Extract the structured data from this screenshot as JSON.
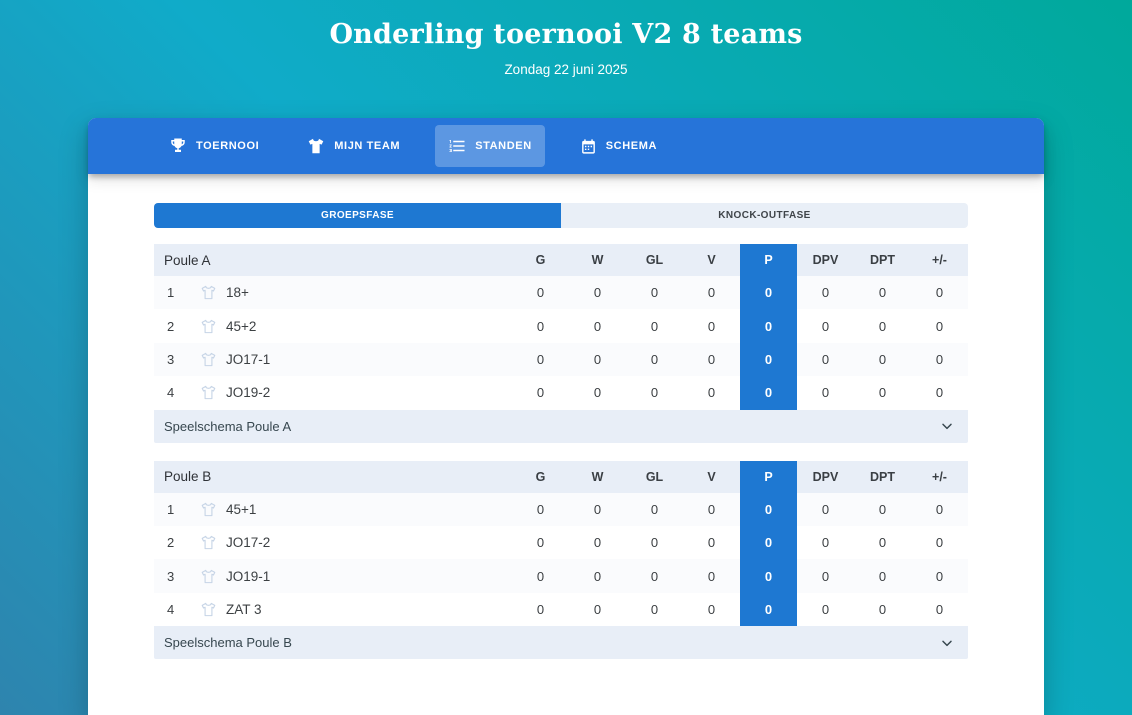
{
  "page": {
    "title": "Onderling toernooi V2 8 teams",
    "subtitle": "Zondag 22 juni 2025"
  },
  "nav": {
    "items": [
      {
        "label": "TOERNOOI",
        "icon": "trophy-icon",
        "active": false
      },
      {
        "label": "MIJN TEAM",
        "icon": "shirt-icon",
        "active": false
      },
      {
        "label": "STANDEN",
        "icon": "numbered-list-icon",
        "active": true
      },
      {
        "label": "SCHEMA",
        "icon": "calendar-icon",
        "active": false
      }
    ]
  },
  "tabs": [
    {
      "label": "GROEPSFASE",
      "active": true
    },
    {
      "label": "KNOCK-OUTFASE",
      "active": false
    }
  ],
  "standings": {
    "columns": [
      "G",
      "W",
      "GL",
      "V",
      "P",
      "DPV",
      "DPT",
      "+/-"
    ],
    "highlight_column": "P",
    "poules": [
      {
        "name": "Poule A",
        "footer_label": "Speelschema Poule A",
        "teams": [
          {
            "rank": "1",
            "name": "18+",
            "values": [
              "0",
              "0",
              "0",
              "0",
              "0",
              "0",
              "0",
              "0"
            ]
          },
          {
            "rank": "2",
            "name": "45+2",
            "values": [
              "0",
              "0",
              "0",
              "0",
              "0",
              "0",
              "0",
              "0"
            ]
          },
          {
            "rank": "3",
            "name": "JO17-1",
            "values": [
              "0",
              "0",
              "0",
              "0",
              "0",
              "0",
              "0",
              "0"
            ]
          },
          {
            "rank": "4",
            "name": "JO19-2",
            "values": [
              "0",
              "0",
              "0",
              "0",
              "0",
              "0",
              "0",
              "0"
            ]
          }
        ]
      },
      {
        "name": "Poule B",
        "footer_label": "Speelschema Poule B",
        "teams": [
          {
            "rank": "1",
            "name": "45+1",
            "values": [
              "0",
              "0",
              "0",
              "0",
              "0",
              "0",
              "0",
              "0"
            ]
          },
          {
            "rank": "2",
            "name": "JO17-2",
            "values": [
              "0",
              "0",
              "0",
              "0",
              "0",
              "0",
              "0",
              "0"
            ]
          },
          {
            "rank": "3",
            "name": "JO19-1",
            "values": [
              "0",
              "0",
              "0",
              "0",
              "0",
              "0",
              "0",
              "0"
            ]
          },
          {
            "rank": "4",
            "name": "ZAT 3",
            "values": [
              "0",
              "0",
              "0",
              "0",
              "0",
              "0",
              "0",
              "0"
            ]
          }
        ]
      }
    ]
  },
  "colors": {
    "background_gradient": [
      "#00a99b",
      "#10abc9",
      "#2e84ae"
    ],
    "navbar_blue": "#2674d9",
    "accent_blue": "#1e78d2",
    "table_header_bg": "#e8eef7",
    "title_text": "#ffffff"
  }
}
